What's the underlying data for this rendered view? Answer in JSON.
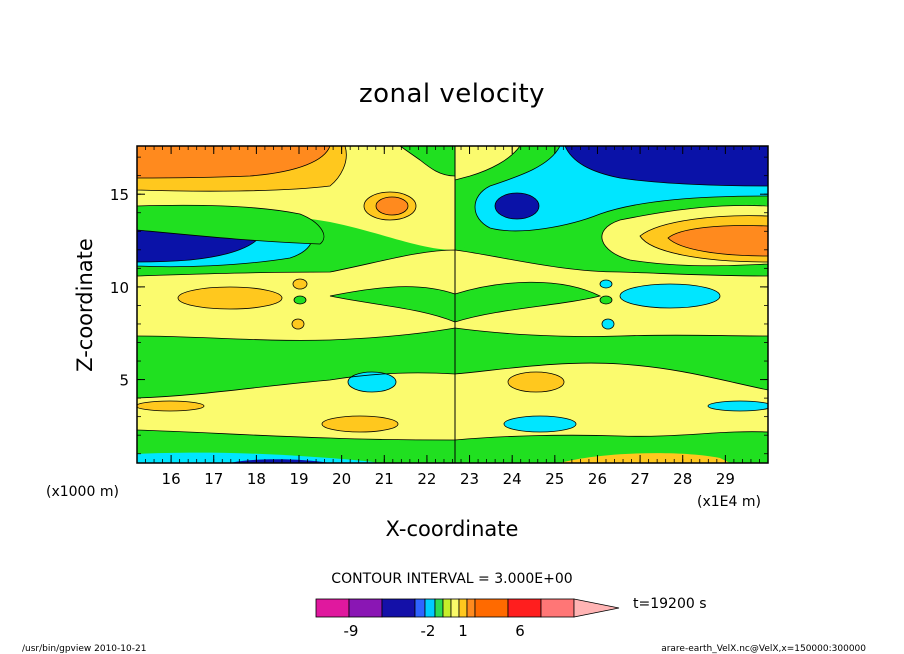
{
  "chart_data": {
    "type": "heatmap",
    "title": "zonal velocity",
    "xlabel": "X-coordinate",
    "ylabel": "Z-coordinate",
    "x_unit_left": "(x1000 m)",
    "x_unit_right": "(x1E4 m)",
    "xlim": [
      15.2,
      30.0
    ],
    "ylim": [
      0.5,
      17.6
    ],
    "x_ticks": [
      16,
      17,
      18,
      19,
      20,
      21,
      22,
      23,
      24,
      25,
      26,
      27,
      28,
      29
    ],
    "y_ticks": [
      5,
      10,
      15
    ],
    "contour_interval": "CONTOUR INTERVAL = 3.000E+00",
    "time_label": "t=19200 s",
    "colorbar": {
      "tick_labels": [
        "-9",
        "-2",
        "1",
        "6"
      ],
      "colors": [
        "#e0189e",
        "#8a16b4",
        "#1410a8",
        "#2f64ff",
        "#00ccff",
        "#2edc52",
        "#c7ee2a",
        "#fafa6a",
        "#ffc81e",
        "#ff8a1e",
        "#ff6a00",
        "#ff1e1e",
        "#ff7676",
        "#ffb4b4"
      ]
    },
    "level_colors": {
      "-6": "#0a12a8",
      "-3": "#00e6ff",
      "0": "#20e020",
      "3": "#fbfb6e",
      "6": "#ffc81e",
      "9": "#ff8a1e",
      "12": "#ff6a00"
    },
    "field_samples": {
      "note_none": "",
      "bands": [
        {
          "z": [
            0.5,
            1.2
          ],
          "value_left": -3,
          "value_right": 6
        },
        {
          "z": [
            1.2,
            2.2
          ],
          "value_left": 0,
          "value_right": 0
        },
        {
          "z": [
            2.2,
            5.5
          ],
          "value_left": 3,
          "value_right": 3
        },
        {
          "z": [
            5.5,
            7.5
          ],
          "value_left": 0,
          "value_right": 0
        },
        {
          "z": [
            7.5,
            11.0
          ],
          "value_left": 3,
          "value_right": 3
        },
        {
          "z": [
            11.0,
            14.0
          ],
          "value_left": -6,
          "value_right": 6
        },
        {
          "z": [
            14.0,
            16.0
          ],
          "value_left": 3,
          "value_right": -3
        },
        {
          "z": [
            16.0,
            17.6
          ],
          "value_left": 12,
          "value_right": -6
        }
      ]
    }
  },
  "footer": {
    "left": "/usr/bin/gpview  2010-10-21",
    "right": "arare-earth_VelX.nc@VelX,x=150000:300000"
  }
}
